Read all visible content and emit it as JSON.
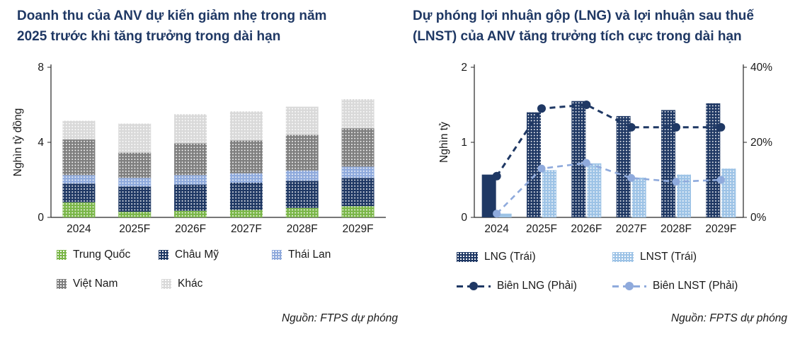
{
  "left_panel": {
    "title_lines": [
      "Doanh thu của ANV dự kiến giảm nhẹ trong năm",
      "2025 trước khi tăng trưởng trong dài hạn"
    ],
    "source": "Nguồn: FTPS dự phóng"
  },
  "right_panel": {
    "title_lines": [
      "Dự phóng lợi nhuận gộp (LNG) và lợi nhuận sau thuế",
      "(LNST) của ANV tăng trưởng tích cực trong dài hạn"
    ],
    "source": "Nguồn: FPTS dự phóng"
  },
  "colors": {
    "title_navy": "#1F3864",
    "axis": "#262626",
    "text": "#1a1a1a"
  },
  "chart_data": [
    {
      "type": "bar",
      "stacked": true,
      "title": "Doanh thu của ANV dự kiến giảm nhẹ trong năm 2025 trước khi tăng trưởng trong dài hạn",
      "ylabel": "Nghìn tỷ đồng",
      "ylim": [
        0,
        8
      ],
      "yticks": [
        0,
        4,
        8
      ],
      "grid": false,
      "legend_position": "bottom",
      "categories": [
        "2024",
        "2025F",
        "2026F",
        "2027F",
        "2028F",
        "2029F"
      ],
      "series": [
        {
          "name": "Trung Quốc",
          "color": "#7AB648",
          "values": [
            0.8,
            0.3,
            0.35,
            0.4,
            0.5,
            0.6
          ]
        },
        {
          "name": "Châu Mỹ",
          "color": "#1F3864",
          "values": [
            1.0,
            1.35,
            1.4,
            1.45,
            1.45,
            1.5
          ]
        },
        {
          "name": "Thái Lan",
          "color": "#8FAADC",
          "values": [
            0.45,
            0.45,
            0.5,
            0.5,
            0.55,
            0.6
          ]
        },
        {
          "name": "Việt Nam",
          "color": "#7F7F7F",
          "values": [
            1.9,
            1.35,
            1.7,
            1.75,
            1.9,
            2.05
          ]
        },
        {
          "name": "Khác",
          "color": "#D9D9D9",
          "values": [
            1.0,
            1.55,
            1.55,
            1.55,
            1.5,
            1.55
          ]
        }
      ]
    },
    {
      "type": "combo",
      "title": "Dự phóng lợi nhuận gộp (LNG) và lợi nhuận sau thuế (LNST) của ANV tăng trưởng tích cực trong dài hạn",
      "ylabel": "Nghìn tỷ",
      "ylim_left": [
        0,
        2
      ],
      "yticks_left": [
        0,
        1,
        2
      ],
      "ylim_right_pct": [
        0,
        40
      ],
      "yticks_right_pct": [
        0,
        20,
        40
      ],
      "grid": false,
      "legend_position": "bottom",
      "categories": [
        "2024",
        "2025F",
        "2026F",
        "2027F",
        "2028F",
        "2029F"
      ],
      "bar_series": [
        {
          "name": "LNG (Trái)",
          "color": "#1F3864",
          "values": [
            0.57,
            1.4,
            1.55,
            1.35,
            1.43,
            1.52
          ]
        },
        {
          "name": "LNST (Trái)",
          "color": "#9DC3E6",
          "values": [
            0.05,
            0.63,
            0.72,
            0.53,
            0.57,
            0.65
          ]
        }
      ],
      "line_series": [
        {
          "name": "Biên LNG (Phải)",
          "color": "#1F3864",
          "values_pct": [
            11,
            29,
            30,
            24,
            24,
            24
          ]
        },
        {
          "name": "Biên LNST (Phải)",
          "color": "#8FAADC",
          "values_pct": [
            1,
            13,
            14.5,
            10.5,
            9.5,
            10
          ]
        }
      ]
    }
  ]
}
